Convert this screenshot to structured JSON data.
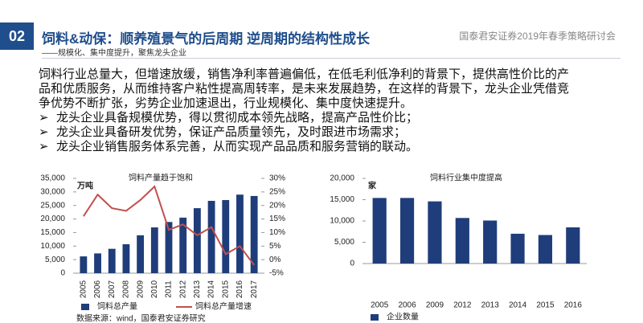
{
  "header": {
    "badge": "02",
    "title": "饲料&动保：顺养殖景气的后周期 逆周期的结构性成长",
    "subtitle": "——规模化、集中度提升，聚焦龙头企业",
    "org": "国泰君安证券2019年春季策略研讨会"
  },
  "body": {
    "paragraph": "饲料行业总量大，但增速放缓，销售净利率普遍偏低，在低毛利低净利的背景下，提供高性价比的产品和优质服务，从而维持客户粘性提高周转率，是未来发展趋势，在这样的背景下，龙头企业凭借竞争优势不断扩张，劣势企业加速退出，行业规模化、集中度快速提升。",
    "bullets": [
      "龙头企业具备规模优势，得以贯彻成本领先战略，提高产品性价比；",
      "龙头企业具备研发优势，保证产品质量领先，及时跟进市场需求；",
      "龙头企业销售服务体系完善，从而实现产品品质和服务营销的联动。"
    ]
  },
  "chart_data": [
    {
      "type": "combo",
      "title": "饲料产量趋于饱和",
      "y_unit": "万吨",
      "source": "数据来源：wind，国泰君安证券研究",
      "categories": [
        "2005",
        "2006",
        "2007",
        "2008",
        "2009",
        "2010",
        "2011",
        "2012",
        "2013",
        "2014",
        "2015",
        "2016",
        "2017"
      ],
      "series": [
        {
          "name": "饲料总产量",
          "type": "bar",
          "color": "#1f3d7a",
          "values": [
            6200,
            7300,
            9000,
            10700,
            14000,
            16900,
            18900,
            20500,
            24000,
            26700,
            27000,
            29000,
            28500
          ]
        },
        {
          "name": "饲料总产量增速",
          "type": "line",
          "axis": "y2",
          "color": "#c0504d",
          "values": [
            16,
            24,
            19,
            18,
            22,
            27,
            11,
            13,
            9,
            12,
            2,
            5,
            -2
          ]
        }
      ],
      "ylim": [
        0,
        35000
      ],
      "yticks": [
        0,
        {
          "value": 5000,
          "label": "5,000"
        },
        {
          "value": 10000,
          "label": "10,000"
        },
        {
          "value": 15000,
          "label": "15,000"
        },
        {
          "value": 20000,
          "label": "20,000"
        },
        {
          "value": 25000,
          "label": "25,000"
        },
        {
          "value": 30000,
          "label": "30,000"
        },
        {
          "value": 35000,
          "label": "35,000"
        }
      ],
      "y2lim": [
        -5,
        30
      ],
      "y2ticks": [
        {
          "value": -5,
          "label": "-5%"
        },
        {
          "value": 0,
          "label": "0%"
        },
        {
          "value": 5,
          "label": "5%"
        },
        {
          "value": 10,
          "label": "10%"
        },
        {
          "value": 15,
          "label": "15%"
        },
        {
          "value": 20,
          "label": "20%"
        },
        {
          "value": 25,
          "label": "25%"
        },
        {
          "value": 30,
          "label": "30%"
        }
      ]
    },
    {
      "type": "bar",
      "title": "饲料行业集中度提高",
      "y_unit": "家",
      "categories": [
        "2005",
        "2006",
        "2009",
        "2012",
        "2013",
        "2014",
        "2015",
        "2016"
      ],
      "series": [
        {
          "name": "企业数量",
          "type": "bar",
          "color": "#1f3d7a",
          "values": [
            15400,
            15400,
            14600,
            10700,
            10100,
            7000,
            6700,
            8500
          ]
        }
      ],
      "ylim": [
        0,
        20000
      ],
      "yticks": [
        0,
        {
          "value": 5000,
          "label": "5,000"
        },
        {
          "value": 10000,
          "label": "10,000"
        },
        {
          "value": 15000,
          "label": "15,000"
        },
        {
          "value": 20000,
          "label": "20,000"
        }
      ]
    }
  ]
}
